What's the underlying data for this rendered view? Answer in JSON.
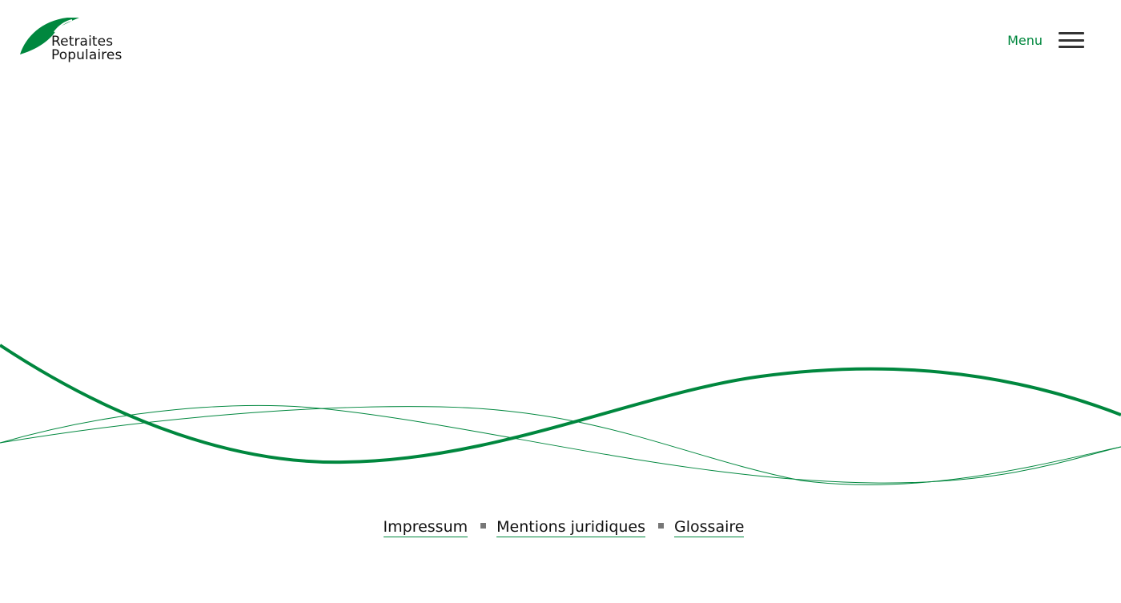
{
  "header": {
    "logo": {
      "line1": "Retraites",
      "line2": "Populaires",
      "brand_color": "#00873e",
      "icon": "leaf-logo-icon"
    },
    "menu": {
      "label": "Menu",
      "icon": "hamburger-menu-icon"
    }
  },
  "decoration": {
    "waves_color": "#00873e"
  },
  "footer": {
    "links": [
      {
        "label": "Impressum"
      },
      {
        "label": "Mentions juridiques"
      },
      {
        "label": "Glossaire"
      }
    ],
    "separator_icon": "square-separator-icon"
  }
}
